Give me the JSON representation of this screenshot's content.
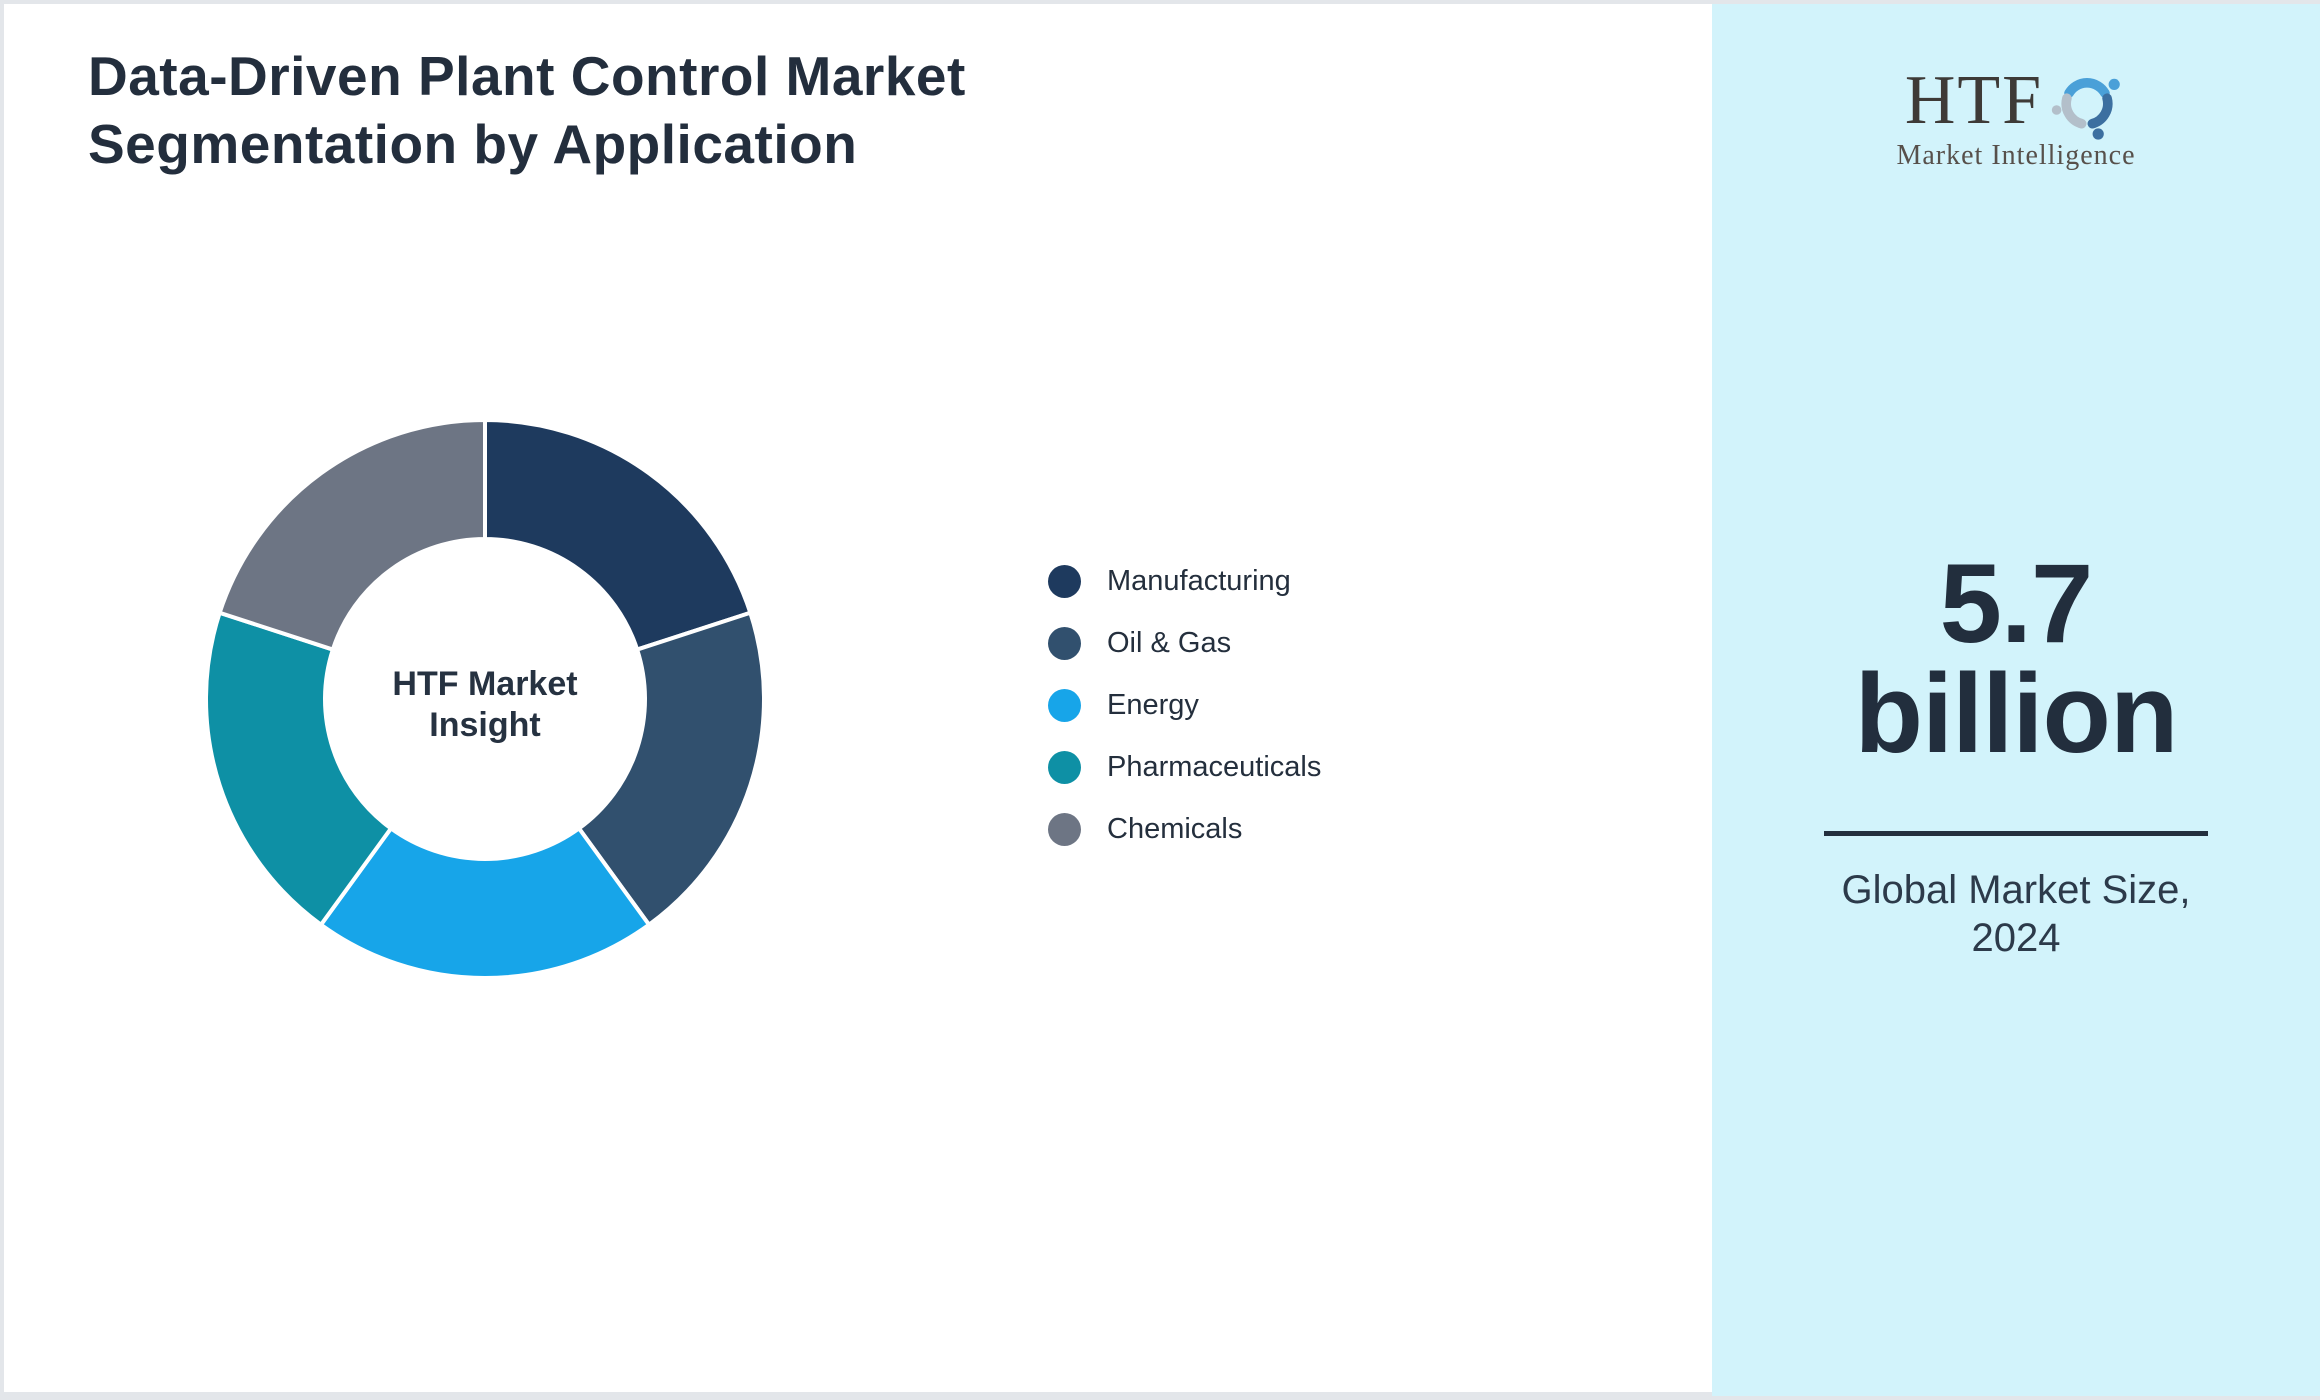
{
  "title": {
    "text": "Data-Driven Plant Control Market Segmentation by Application"
  },
  "donut": {
    "center_label": "HTF Market Insight"
  },
  "chart_data": {
    "type": "pie",
    "subtype": "donut",
    "title": "Data-Driven Plant Control Market Segmentation by Application",
    "categories": [
      "Manufacturing",
      "Oil & Gas",
      "Energy",
      "Pharmaceuticals",
      "Chemicals"
    ],
    "values": [
      20,
      20,
      20,
      20,
      20
    ],
    "colors": [
      "#1e3a5e",
      "#31506e",
      "#17a5e9",
      "#0e90a5",
      "#6d7584"
    ],
    "start_angle_deg": 0,
    "direction": "clockwise",
    "inner_radius_ratio": 0.57,
    "legend_position": "right",
    "center_label": "HTF Market Insight"
  },
  "legend": {
    "items": [
      {
        "label": "Manufacturing",
        "color": "#1e3a5e"
      },
      {
        "label": "Oil & Gas",
        "color": "#31506e"
      },
      {
        "label": "Energy",
        "color": "#17a5e9"
      },
      {
        "label": "Pharmaceuticals",
        "color": "#0e90a5"
      },
      {
        "label": "Chemicals",
        "color": "#6d7584"
      }
    ]
  },
  "sidebar": {
    "background": "#d2f3fb",
    "logo": {
      "brand": "HTF",
      "subtitle": "Market Intelligence"
    },
    "metric_value": "5.7",
    "metric_unit": "billion",
    "caption": "Global Market Size, 2024",
    "accent_text_color": "#222e3d"
  }
}
